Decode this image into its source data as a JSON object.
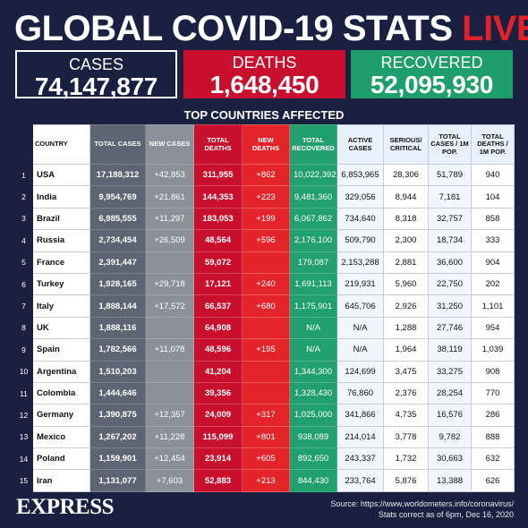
{
  "title": {
    "main": "GLOBAL COVID-19 STATS",
    "live": "LIVE"
  },
  "summary": {
    "cases": {
      "label": "CASES",
      "value": "74,147,877"
    },
    "deaths": {
      "label": "DEATHS",
      "value": "1,648,450"
    },
    "recovered": {
      "label": "RECOVERED",
      "value": "52,095,930"
    }
  },
  "subtitle": "TOP COUNTRIES AFFECTED",
  "columns": [
    "COUNTRY",
    "TOTAL CASES",
    "NEW CASES",
    "TOTAL DEATHS",
    "NEW DEATHS",
    "TOTAL RECOVERED",
    "ACTIVE CASES",
    "SERIOUS/ CRITICAL",
    "TOTAL CASES / 1M POP.",
    "TOTAL DEATHS / 1M POP."
  ],
  "rows": [
    {
      "rank": "1",
      "country": "USA",
      "cases": "17,188,312",
      "new_cases": "+42,853",
      "deaths": "311,955",
      "new_deaths": "+862",
      "recovered": "10,022,392",
      "active": "6,853,965",
      "serious": "28,306",
      "cases_pm": "51,789",
      "deaths_pm": "940"
    },
    {
      "rank": "2",
      "country": "India",
      "cases": "9,954,769",
      "new_cases": "+21,861",
      "deaths": "144,353",
      "new_deaths": "+223",
      "recovered": "9,481,360",
      "active": "329,056",
      "serious": "8,944",
      "cases_pm": "7,181",
      "deaths_pm": "104"
    },
    {
      "rank": "3",
      "country": "Brazil",
      "cases": "6,985,555",
      "new_cases": "+11,297",
      "deaths": "183,053",
      "new_deaths": "+199",
      "recovered": "6,067,862",
      "active": "734,640",
      "serious": "8,318",
      "cases_pm": "32,757",
      "deaths_pm": "858"
    },
    {
      "rank": "4",
      "country": "Russia",
      "cases": "2,734,454",
      "new_cases": "+26,509",
      "deaths": "48,564",
      "new_deaths": "+596",
      "recovered": "2,176,100",
      "active": "509,790",
      "serious": "2,300",
      "cases_pm": "18,734",
      "deaths_pm": "333"
    },
    {
      "rank": "5",
      "country": "France",
      "cases": "2,391,447",
      "new_cases": "",
      "deaths": "59,072",
      "new_deaths": "",
      "recovered": "179,087",
      "active": "2,153,288",
      "serious": "2,881",
      "cases_pm": "36,600",
      "deaths_pm": "904"
    },
    {
      "rank": "6",
      "country": "Turkey",
      "cases": "1,928,165",
      "new_cases": "+29,718",
      "deaths": "17,121",
      "new_deaths": "+240",
      "recovered": "1,691,113",
      "active": "219,931",
      "serious": "5,960",
      "cases_pm": "22,750",
      "deaths_pm": "202"
    },
    {
      "rank": "7",
      "country": "Italy",
      "cases": "1,888,144",
      "new_cases": "+17,572",
      "deaths": "66,537",
      "new_deaths": "+680",
      "recovered": "1,175,901",
      "active": "645,706",
      "serious": "2,926",
      "cases_pm": "31,250",
      "deaths_pm": "1,101"
    },
    {
      "rank": "8",
      "country": "UK",
      "cases": "1,888,116",
      "new_cases": "",
      "deaths": "64,908",
      "new_deaths": "",
      "recovered": "N/A",
      "active": "N/A",
      "serious": "1,288",
      "cases_pm": "27,746",
      "deaths_pm": "954"
    },
    {
      "rank": "9",
      "country": "Spain",
      "cases": "1,782,566",
      "new_cases": "+11,078",
      "deaths": "48,596",
      "new_deaths": "+195",
      "recovered": "N/A",
      "active": "N/A",
      "serious": "1,964",
      "cases_pm": "38,119",
      "deaths_pm": "1,039"
    },
    {
      "rank": "10",
      "country": "Argentina",
      "cases": "1,510,203",
      "new_cases": "",
      "deaths": "41,204",
      "new_deaths": "",
      "recovered": "1,344,300",
      "active": "124,699",
      "serious": "3,475",
      "cases_pm": "33,275",
      "deaths_pm": "908"
    },
    {
      "rank": "11",
      "country": "Colombia",
      "cases": "1,444,646",
      "new_cases": "",
      "deaths": "39,356",
      "new_deaths": "",
      "recovered": "1,328,430",
      "active": "76,860",
      "serious": "2,376",
      "cases_pm": "28,254",
      "deaths_pm": "770"
    },
    {
      "rank": "12",
      "country": "Germany",
      "cases": "1,390,875",
      "new_cases": "+12,357",
      "deaths": "24,009",
      "new_deaths": "+317",
      "recovered": "1,025,000",
      "active": "341,866",
      "serious": "4,735",
      "cases_pm": "16,576",
      "deaths_pm": "286"
    },
    {
      "rank": "13",
      "country": "Mexico",
      "cases": "1,267,202",
      "new_cases": "+11,228",
      "deaths": "115,099",
      "new_deaths": "+801",
      "recovered": "938,089",
      "active": "214,014",
      "serious": "3,778",
      "cases_pm": "9,782",
      "deaths_pm": "888"
    },
    {
      "rank": "14",
      "country": "Poland",
      "cases": "1,159,901",
      "new_cases": "+12,454",
      "deaths": "23,914",
      "new_deaths": "+605",
      "recovered": "892,650",
      "active": "243,337",
      "serious": "1,732",
      "cases_pm": "30,663",
      "deaths_pm": "632"
    },
    {
      "rank": "15",
      "country": "Iran",
      "cases": "1,131,077",
      "new_cases": "+7,603",
      "deaths": "52,883",
      "new_deaths": "+213",
      "recovered": "844,430",
      "active": "233,764",
      "serious": "5,876",
      "cases_pm": "13,388",
      "deaths_pm": "626"
    }
  ],
  "brand": "EXPRESS",
  "source": {
    "line1": "Source: https://www.worldometers.info/coronavirus/",
    "line2": "Stats correct as of 6pm, Dec 16, 2020"
  },
  "colors": {
    "background": "#1a2140",
    "deaths": "#c8102e",
    "recovered": "#1f9e6d",
    "live": "#e0222a"
  }
}
